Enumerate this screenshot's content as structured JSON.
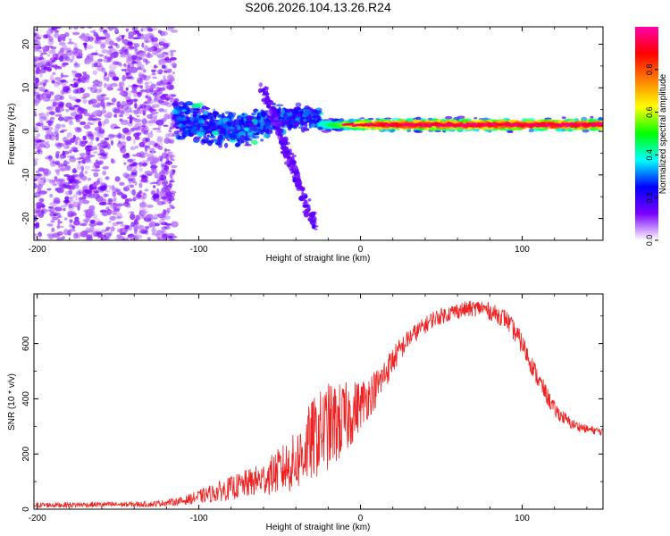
{
  "title": "S206.2026.104.13.26.R24",
  "chart_data": [
    {
      "type": "heatmap",
      "name": "spectrogram",
      "xlabel": "Height of straight line (km)",
      "ylabel": "Frequency (Hz)",
      "xlim": [
        -202,
        150
      ],
      "ylim": [
        -25,
        24
      ],
      "xticks": [
        -200,
        -100,
        0,
        100
      ],
      "xtick_labels": [
        "-200",
        "-100",
        "0",
        "100"
      ],
      "yticks": [
        -20,
        -10,
        0,
        10,
        20
      ],
      "ytick_labels": [
        "-20",
        "-10",
        "0",
        "10",
        "20"
      ],
      "colorbar": {
        "label": "Normalized spectral amplitude",
        "range": [
          0,
          1
        ],
        "ticks": [
          0.0,
          0.2,
          0.4,
          0.6,
          0.8
        ],
        "tick_labels": [
          "0.0",
          "0.2",
          "0.4",
          "0.6",
          "0.8"
        ],
        "colormap": [
          "#ffffff",
          "#7a00ff",
          "#0000ff",
          "#00ffff",
          "#00ff00",
          "#ffff00",
          "#ff8000",
          "#ff0000",
          "#ff00aa"
        ]
      },
      "features": [
        {
          "region": "noise",
          "x_range": [
            -202,
            -115
          ],
          "f_range": [
            -25,
            24
          ],
          "amplitude": 0.1
        },
        {
          "region": "breakup",
          "x_range": [
            -115,
            -25
          ],
          "f_center": 1,
          "f_spread": 8,
          "amplitude": 0.25
        },
        {
          "region": "diagonal_streak",
          "x_range": [
            -60,
            -28
          ],
          "f_range": [
            10,
            -22
          ],
          "amplitude": 0.15
        },
        {
          "region": "carrier",
          "x_range": [
            -25,
            150
          ],
          "f_center": 1.5,
          "f_spread": 1.2,
          "amplitude": 0.9
        }
      ]
    },
    {
      "type": "line",
      "name": "snr",
      "xlabel": "Height of straight line (km)",
      "ylabel": "SNR (10 * v/v)",
      "xlim": [
        -202,
        150
      ],
      "ylim": [
        0,
        780
      ],
      "xticks": [
        -200,
        -100,
        0,
        100
      ],
      "xtick_labels": [
        "-200",
        "-100",
        "0",
        "100"
      ],
      "yticks": [
        0,
        200,
        400,
        600
      ],
      "ytick_labels": [
        "0",
        "200",
        "400",
        "600"
      ],
      "line_color": "#ee2222",
      "envelope": {
        "x": [
          -202,
          -130,
          -110,
          -90,
          -60,
          -40,
          -30,
          -20,
          -10,
          0,
          10,
          20,
          30,
          45,
          60,
          75,
          90,
          100,
          110,
          120,
          130,
          140,
          150
        ],
        "mean": [
          15,
          18,
          30,
          60,
          110,
          170,
          250,
          300,
          320,
          380,
          440,
          540,
          620,
          690,
          720,
          730,
          690,
          600,
          470,
          360,
          310,
          290,
          280
        ],
        "noise": [
          10,
          10,
          15,
          35,
          60,
          110,
          150,
          160,
          140,
          90,
          70,
          50,
          35,
          30,
          30,
          30,
          35,
          40,
          35,
          30,
          20,
          15,
          15
        ]
      }
    }
  ]
}
